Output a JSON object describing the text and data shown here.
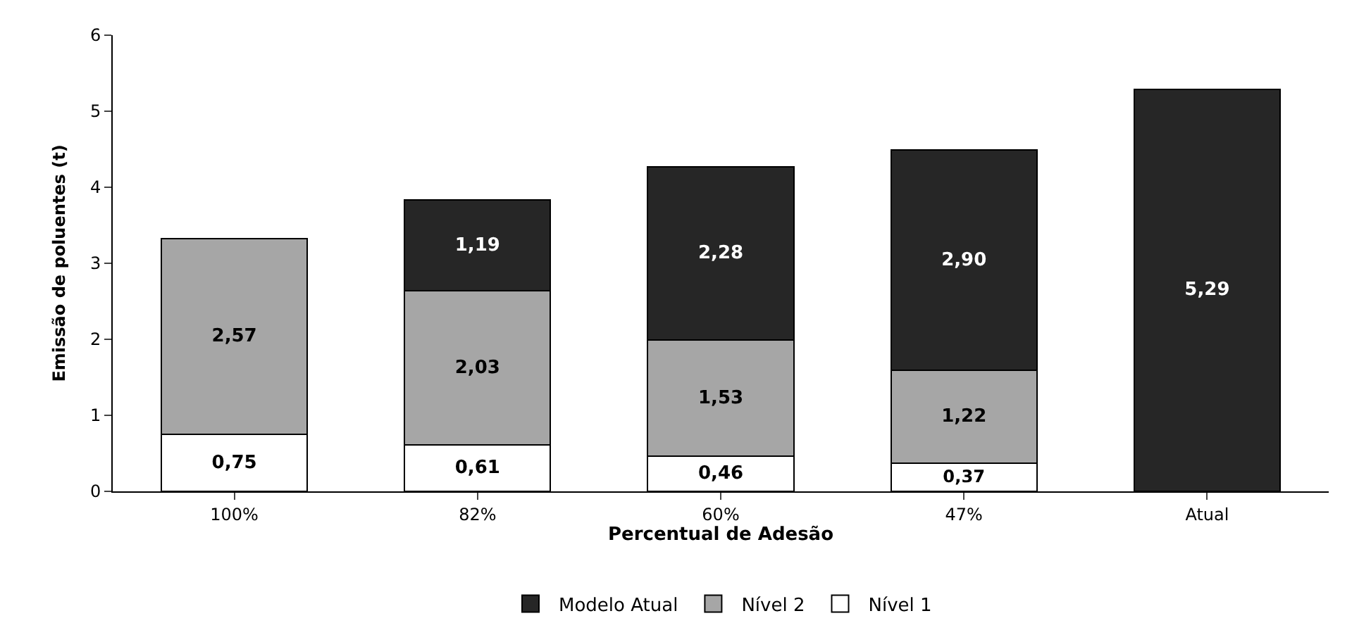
{
  "chart_data": {
    "type": "bar",
    "stacked": true,
    "xlabel": "Percentual de Adesão",
    "ylabel": "Emissão de poluentes (t)",
    "categories": [
      "100%",
      "82%",
      "60%",
      "47%",
      "Atual"
    ],
    "series": [
      {
        "name": "Nível 1",
        "color": "#ffffff",
        "values": [
          0.75,
          0.61,
          0.46,
          0.37,
          null
        ],
        "value_labels": [
          "0,75",
          "0,61",
          "0,46",
          "0,37",
          null
        ]
      },
      {
        "name": "Nível 2",
        "color": "#a6a6a6",
        "values": [
          2.57,
          2.03,
          1.53,
          1.22,
          null
        ],
        "value_labels": [
          "2,57",
          "2,03",
          "1,53",
          "1,22",
          null
        ]
      },
      {
        "name": "Modelo Atual",
        "color": "#262626",
        "values": [
          null,
          1.19,
          2.28,
          2.9,
          5.29
        ],
        "value_labels": [
          null,
          "1,19",
          "2,28",
          "2,90",
          "5,29"
        ]
      }
    ],
    "ylim": [
      0,
      6
    ],
    "yticks": [
      0,
      1,
      2,
      3,
      4,
      5,
      6
    ],
    "grid": false,
    "legend": "bottom"
  }
}
